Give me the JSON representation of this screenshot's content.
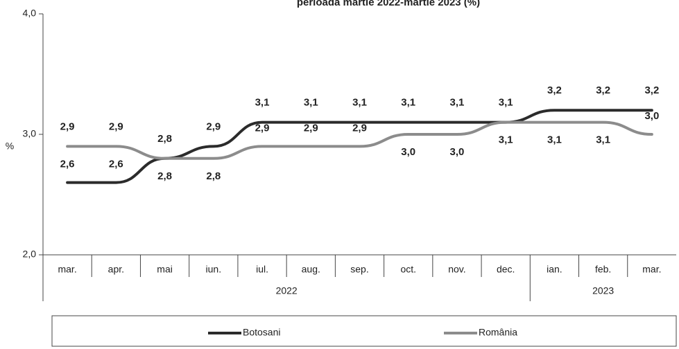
{
  "chart_data": {
    "type": "line",
    "title": "perioada martie 2022-martie 2023 (%)",
    "y_label": "%",
    "categories": [
      "mar.",
      "apr.",
      "mai",
      "iun.",
      "iul.",
      "aug.",
      "sep.",
      "oct.",
      "nov.",
      "dec.",
      "ian.",
      "feb.",
      "mar."
    ],
    "x_groups": [
      {
        "label": "2022",
        "span": 10
      },
      {
        "label": "2023",
        "span": 3
      }
    ],
    "series": [
      {
        "name": "Botosani",
        "color": "#2b2b2b",
        "values": [
          2.6,
          2.6,
          2.8,
          2.9,
          3.1,
          3.1,
          3.1,
          3.1,
          3.1,
          3.1,
          3.2,
          3.2,
          3.2
        ],
        "value_labels": [
          "2,6",
          "2,6",
          "2,8",
          "2,9",
          "3,1",
          "3,1",
          "3,1",
          "3,1",
          "3,1",
          "3,1",
          "3,2",
          "3,2",
          "3,2"
        ]
      },
      {
        "name": "România",
        "color": "#8c8c8c",
        "values": [
          2.9,
          2.9,
          2.8,
          2.8,
          2.9,
          2.9,
          2.9,
          3.0,
          3.0,
          3.1,
          3.1,
          3.1,
          3.0
        ],
        "value_labels": [
          "2,9",
          "2,9",
          "2,8",
          "2,8",
          "2,9",
          "2,9",
          "2,9",
          "3,0",
          "3,0",
          "3,1",
          "3,1",
          "3,1",
          "3,0"
        ]
      }
    ],
    "ylim": [
      2,
      4
    ],
    "yticks": [
      {
        "value": 2,
        "label": "2,0"
      },
      {
        "value": 3,
        "label": "3,0"
      },
      {
        "value": 4,
        "label": "4,0"
      }
    ],
    "legend": "bottom"
  }
}
